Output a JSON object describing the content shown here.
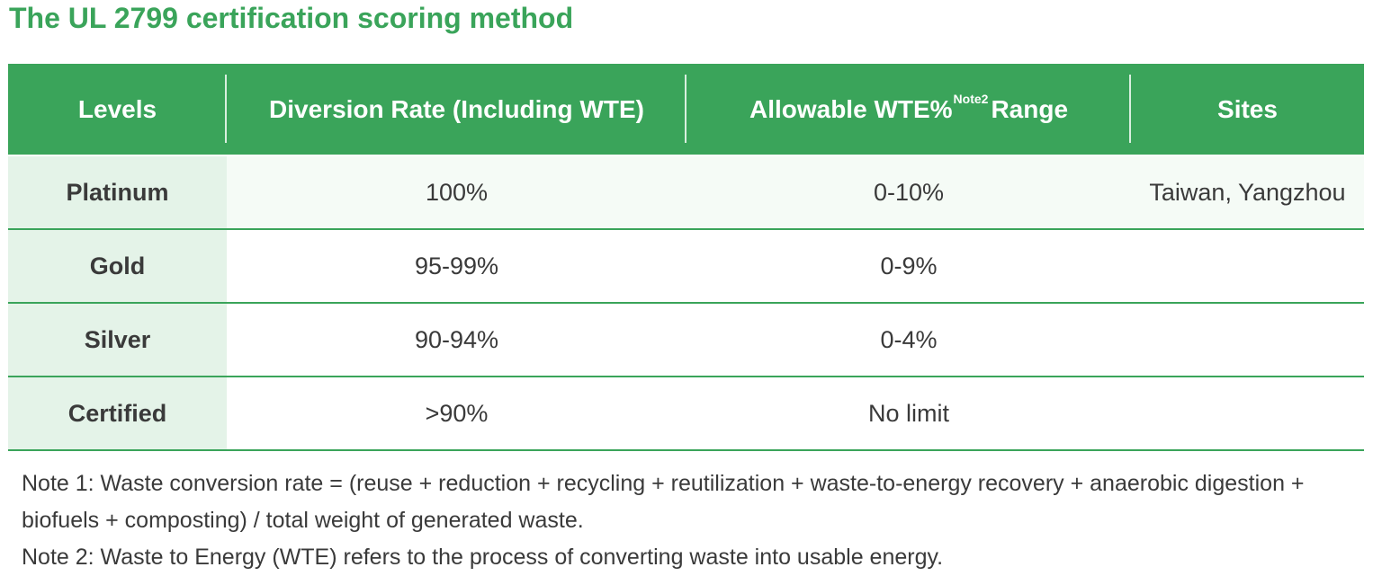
{
  "title": "The UL 2799 certification scoring method",
  "table": {
    "headers": {
      "levels": "Levels",
      "diversion": "Diversion Rate (Including WTE)",
      "wte_pre": "Allowable WTE%",
      "wte_sup": "Note2",
      "wte_post": "Range",
      "sites": "Sites"
    },
    "rows": [
      {
        "level": "Platinum",
        "diversion": "100%",
        "wte": "0-10%",
        "sites": "Taiwan, Yangzhou"
      },
      {
        "level": "Gold",
        "diversion": "95-99%",
        "wte": "0-9%",
        "sites": ""
      },
      {
        "level": "Silver",
        "diversion": "90-94%",
        "wte": "0-4%",
        "sites": ""
      },
      {
        "level": "Certified",
        "diversion": ">90%",
        "wte": "No limit",
        "sites": ""
      }
    ]
  },
  "notes": {
    "note1_line1": "Note 1: Waste conversion rate = (reuse + reduction + recycling + reutilization + waste-to-energy recovery + anaerobic digestion +",
    "note1_line2": "biofuels + composting) / total weight of generated waste.",
    "note2": "Note 2: Waste to Energy (WTE) refers to the process of converting waste into usable energy."
  },
  "colors": {
    "accent_green": "#3aa45a",
    "level_cell_bg": "#e4f3e8"
  }
}
